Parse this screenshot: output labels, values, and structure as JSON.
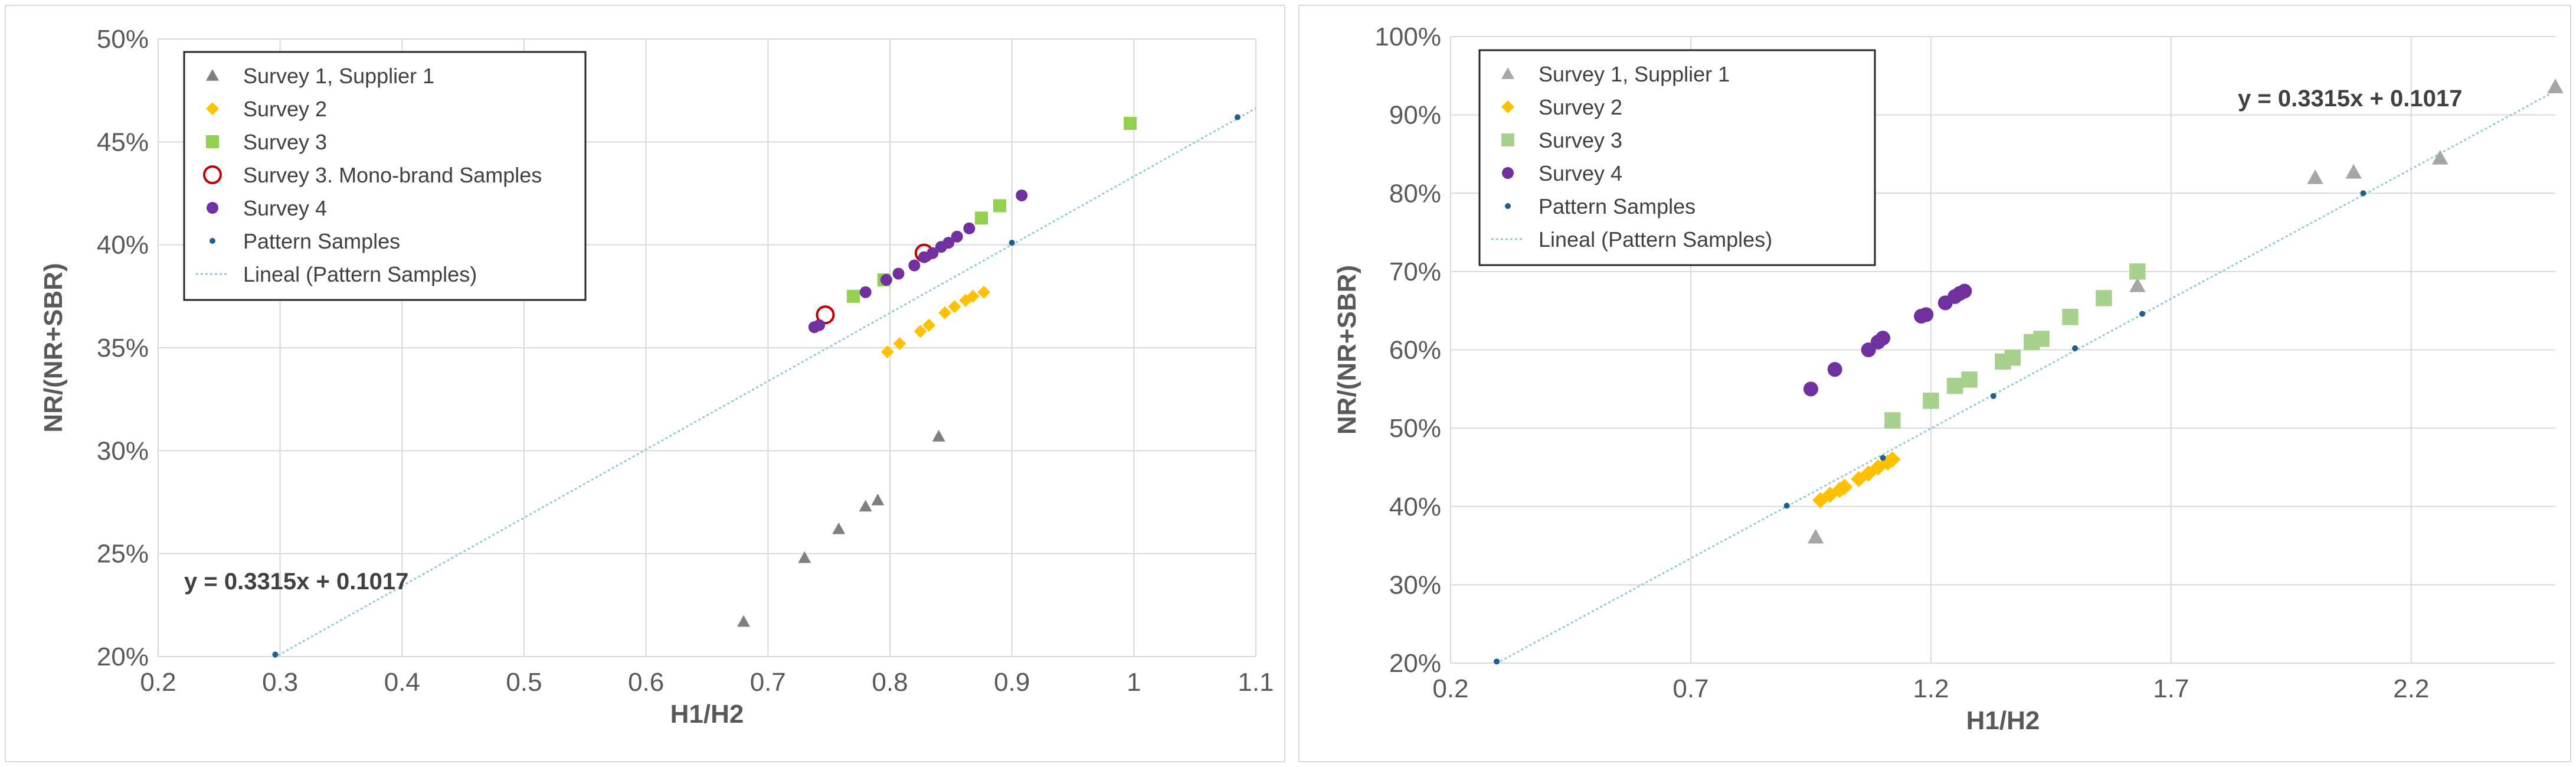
{
  "chart_data": [
    {
      "type": "scatter",
      "title": "",
      "xlabel": "H1/H2",
      "ylabel": "NR/(NR+SBR)",
      "xlim": [
        0.2,
        1.1
      ],
      "ylim": [
        0.2,
        0.5
      ],
      "x_ticks": [
        "0.2",
        "0.3",
        "0.4",
        "0.5",
        "0.6",
        "0.7",
        "0.8",
        "0.9",
        "1",
        "1.1"
      ],
      "y_ticks": [
        "20%",
        "25%",
        "30%",
        "35%",
        "40%",
        "45%",
        "50%"
      ],
      "equation": "y = 0.3315x + 0.1017",
      "trendline": {
        "name": "Lineal (Pattern Samples)",
        "slope": 0.3315,
        "intercept": 0.1017,
        "x_range": [
          0.295,
          1.1
        ],
        "color": "#8fc9dc"
      },
      "series": [
        {
          "name": "Survey 1, Supplier 1",
          "marker": "triangle",
          "color": "#7f7f7f",
          "points": [
            [
              0.68,
              0.217
            ],
            [
              0.73,
              0.248
            ],
            [
              0.758,
              0.262
            ],
            [
              0.78,
              0.273
            ],
            [
              0.79,
              0.276
            ],
            [
              0.84,
              0.307
            ]
          ]
        },
        {
          "name": "Survey 2",
          "marker": "diamond",
          "color": "#ffc000",
          "points": [
            [
              0.798,
              0.348
            ],
            [
              0.808,
              0.352
            ],
            [
              0.825,
              0.358
            ],
            [
              0.832,
              0.361
            ],
            [
              0.845,
              0.367
            ],
            [
              0.853,
              0.37
            ],
            [
              0.862,
              0.373
            ],
            [
              0.868,
              0.375
            ],
            [
              0.877,
              0.377
            ]
          ]
        },
        {
          "name": "Survey 3",
          "marker": "square",
          "color": "#92d050",
          "points": [
            [
              0.77,
              0.375
            ],
            [
              0.795,
              0.383
            ],
            [
              0.875,
              0.413
            ],
            [
              0.89,
              0.419
            ],
            [
              0.997,
              0.459
            ]
          ]
        },
        {
          "name": "Survey 3. Mono-brand Samples",
          "marker": "circle-open",
          "color": "#c00000",
          "points": [
            [
              0.747,
              0.366
            ],
            [
              0.828,
              0.396
            ]
          ]
        },
        {
          "name": "Survey 4",
          "marker": "circle",
          "color": "#7030a0",
          "points": [
            [
              0.738,
              0.36
            ],
            [
              0.742,
              0.361
            ],
            [
              0.78,
              0.377
            ],
            [
              0.797,
              0.383
            ],
            [
              0.807,
              0.386
            ],
            [
              0.82,
              0.39
            ],
            [
              0.828,
              0.394
            ],
            [
              0.835,
              0.396
            ],
            [
              0.842,
              0.399
            ],
            [
              0.848,
              0.401
            ],
            [
              0.855,
              0.404
            ],
            [
              0.865,
              0.408
            ],
            [
              0.908,
              0.424
            ]
          ]
        },
        {
          "name": "Pattern Samples",
          "marker": "dot",
          "color": "#1f5f8b",
          "points": [
            [
              0.296,
              0.201
            ],
            [
              0.9,
              0.401
            ],
            [
              1.085,
              0.462
            ]
          ]
        }
      ],
      "legend_entries": [
        "Survey 1, Supplier 1",
        "Survey 2",
        "Survey 3",
        "Survey 3. Mono-brand Samples",
        "Survey 4",
        "Pattern Samples",
        "Lineal (Pattern Samples)"
      ]
    },
    {
      "type": "scatter",
      "title": "",
      "xlabel": "H1/H2",
      "ylabel": "NR/(NR+SBR)",
      "xlim": [
        0.2,
        2.5
      ],
      "ylim": [
        0.2,
        1.0
      ],
      "x_ticks": [
        "0.2",
        "0.7",
        "1.2",
        "1.7",
        "2.2"
      ],
      "x_tick_values": [
        0.2,
        0.7,
        1.2,
        1.7,
        2.2
      ],
      "y_ticks": [
        "20%",
        "30%",
        "40%",
        "50%",
        "60%",
        "70%",
        "80%",
        "90%",
        "100%"
      ],
      "equation": "y = 0.3315x + 0.1017",
      "trendline": {
        "name": "Lineal (Pattern Samples)",
        "slope": 0.3315,
        "intercept": 0.1017,
        "x_range": [
          0.295,
          2.5
        ],
        "color": "#8fc9dc"
      },
      "series": [
        {
          "name": "Survey 1, Supplier 1",
          "marker": "triangle",
          "color": "#a6a6a6",
          "points": [
            [
              0.96,
              0.361
            ],
            [
              1.63,
              0.682
            ],
            [
              2.0,
              0.82
            ],
            [
              2.08,
              0.827
            ],
            [
              2.26,
              0.845
            ],
            [
              2.5,
              0.936
            ]
          ]
        },
        {
          "name": "Survey 2",
          "marker": "diamond",
          "color": "#ffc000",
          "points": [
            [
              0.97,
              0.408
            ],
            [
              0.99,
              0.415
            ],
            [
              1.01,
              0.421
            ],
            [
              1.02,
              0.425
            ],
            [
              1.05,
              0.435
            ],
            [
              1.07,
              0.442
            ],
            [
              1.09,
              0.45
            ],
            [
              1.11,
              0.456
            ],
            [
              1.12,
              0.46
            ]
          ]
        },
        {
          "name": "Survey 3",
          "marker": "square",
          "color": "#a9d18e",
          "points": [
            [
              1.12,
              0.51
            ],
            [
              1.2,
              0.535
            ],
            [
              1.25,
              0.554
            ],
            [
              1.28,
              0.562
            ],
            [
              1.35,
              0.585
            ],
            [
              1.37,
              0.59
            ],
            [
              1.41,
              0.61
            ],
            [
              1.43,
              0.614
            ],
            [
              1.49,
              0.642
            ],
            [
              1.56,
              0.666
            ],
            [
              1.63,
              0.7
            ]
          ]
        },
        {
          "name": "Survey 4",
          "marker": "circle",
          "color": "#7030a0",
          "points": [
            [
              0.95,
              0.55
            ],
            [
              1.0,
              0.575
            ],
            [
              1.07,
              0.6
            ],
            [
              1.09,
              0.61
            ],
            [
              1.1,
              0.615
            ],
            [
              1.18,
              0.643
            ],
            [
              1.19,
              0.645
            ],
            [
              1.23,
              0.66
            ],
            [
              1.25,
              0.668
            ],
            [
              1.26,
              0.672
            ],
            [
              1.27,
              0.675
            ]
          ]
        },
        {
          "name": "Pattern Samples",
          "marker": "dot",
          "color": "#1f5f8b",
          "points": [
            [
              0.296,
              0.202
            ],
            [
              0.9,
              0.401
            ],
            [
              1.1,
              0.462
            ],
            [
              1.33,
              0.541
            ],
            [
              1.5,
              0.602
            ],
            [
              1.64,
              0.646
            ],
            [
              2.1,
              0.8
            ]
          ]
        }
      ],
      "legend_entries": [
        "Survey 1, Supplier 1",
        "Survey 2",
        "Survey 3",
        "Survey 4",
        "Pattern Samples",
        "Lineal (Pattern Samples)"
      ]
    }
  ]
}
